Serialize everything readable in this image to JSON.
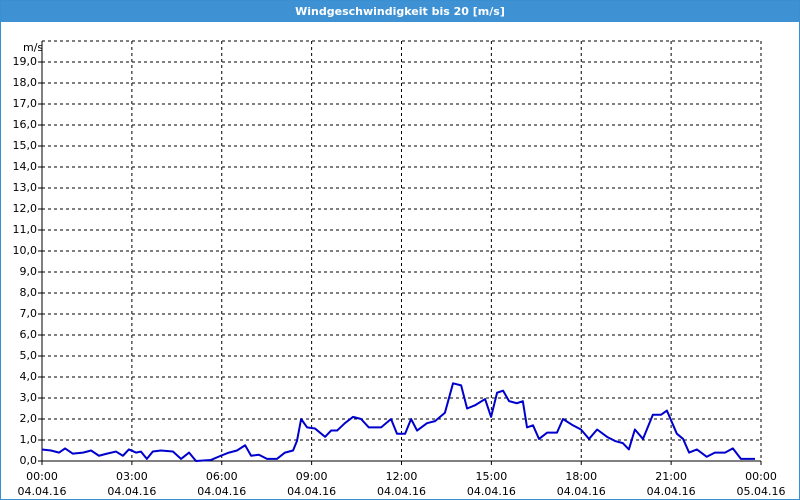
{
  "chart_data": {
    "type": "line",
    "title": "Windgeschwindigkeit bis 20 [m/s]",
    "y_label": "m/s",
    "xlim": [
      0,
      24
    ],
    "ylim": [
      0,
      20
    ],
    "xticks": [
      {
        "value": 0,
        "label": "00:00\n04.04.16"
      },
      {
        "value": 3,
        "label": "03:00\n04.04.16"
      },
      {
        "value": 6,
        "label": "06:00\n04.04.16"
      },
      {
        "value": 9,
        "label": "09:00\n04.04.16"
      },
      {
        "value": 12,
        "label": "12:00\n04.04.16"
      },
      {
        "value": 15,
        "label": "15:00\n04.04.16"
      },
      {
        "value": 18,
        "label": "18:00\n04.04.16"
      },
      {
        "value": 21,
        "label": "21:00\n04.04.16"
      },
      {
        "value": 24,
        "label": "00:00\n05.04.16"
      }
    ],
    "yticks": [
      {
        "value": 0,
        "label": "0,0"
      },
      {
        "value": 1,
        "label": "1,0"
      },
      {
        "value": 2,
        "label": "2,0"
      },
      {
        "value": 3,
        "label": "3,0"
      },
      {
        "value": 4,
        "label": "4,0"
      },
      {
        "value": 5,
        "label": "5,0"
      },
      {
        "value": 6,
        "label": "6,0"
      },
      {
        "value": 7,
        "label": "7,0"
      },
      {
        "value": 8,
        "label": "8,0"
      },
      {
        "value": 9,
        "label": "9,0"
      },
      {
        "value": 10,
        "label": "10,0"
      },
      {
        "value": 11,
        "label": "11,0"
      },
      {
        "value": 12,
        "label": "12,0"
      },
      {
        "value": 13,
        "label": "13,0"
      },
      {
        "value": 14,
        "label": "14,0"
      },
      {
        "value": 15,
        "label": "15,0"
      },
      {
        "value": 16,
        "label": "16,0"
      },
      {
        "value": 17,
        "label": "17,0"
      },
      {
        "value": 18,
        "label": "18,0"
      },
      {
        "value": 19,
        "label": "19,0"
      }
    ],
    "grid": true,
    "x": [
      0,
      0.3,
      0.57,
      0.77,
      1.03,
      1.37,
      1.64,
      1.9,
      2.17,
      2.47,
      2.7,
      2.9,
      3.14,
      3.3,
      3.5,
      3.7,
      3.97,
      4.37,
      4.64,
      4.91,
      5.14,
      5.64,
      5.97,
      6.24,
      6.51,
      6.78,
      6.98,
      7.24,
      7.51,
      7.84,
      8.11,
      8.38,
      8.51,
      8.65,
      8.85,
      9.11,
      9.45,
      9.65,
      9.85,
      10.11,
      10.38,
      10.65,
      10.91,
      11.32,
      11.65,
      11.85,
      12.12,
      12.32,
      12.52,
      12.85,
      13.12,
      13.45,
      13.72,
      13.99,
      14.19,
      14.45,
      14.79,
      14.99,
      15.19,
      15.39,
      15.59,
      15.85,
      16.05,
      16.19,
      16.39,
      16.59,
      16.86,
      17.19,
      17.39,
      17.72,
      17.99,
      18.26,
      18.53,
      18.86,
      19.13,
      19.39,
      19.59,
      19.79,
      20.06,
      20.39,
      20.66,
      20.86,
      21.19,
      21.4,
      21.6,
      21.86,
      22.19,
      22.46,
      22.8,
      23.06,
      23.33,
      23.8
    ],
    "series": [
      {
        "name": "Windgeschwindigkeit",
        "color": "#0000cc",
        "values": [
          0.55,
          0.5,
          0.4,
          0.6,
          0.35,
          0.4,
          0.5,
          0.25,
          0.35,
          0.45,
          0.25,
          0.55,
          0.4,
          0.45,
          0.1,
          0.45,
          0.5,
          0.45,
          0.1,
          0.4,
          0,
          0.05,
          0.25,
          0.4,
          0.5,
          0.75,
          0.25,
          0.3,
          0.1,
          0.1,
          0.4,
          0.5,
          0.95,
          2.0,
          1.6,
          1.55,
          1.15,
          1.45,
          1.45,
          1.8,
          2.1,
          2.0,
          1.6,
          1.6,
          2.0,
          1.3,
          1.3,
          2.0,
          1.45,
          1.8,
          1.9,
          2.3,
          3.7,
          3.6,
          2.5,
          2.65,
          2.95,
          2.1,
          3.25,
          3.35,
          2.85,
          2.75,
          2.85,
          1.6,
          1.7,
          1.05,
          1.35,
          1.35,
          2.0,
          1.7,
          1.5,
          1.05,
          1.5,
          1.15,
          0.95,
          0.85,
          0.55,
          1.5,
          1.05,
          2.2,
          2.2,
          2.4,
          1.3,
          1.05,
          0.4,
          0.55,
          0.2,
          0.4,
          0.4,
          0.6,
          0.1,
          0.1
        ]
      }
    ]
  }
}
